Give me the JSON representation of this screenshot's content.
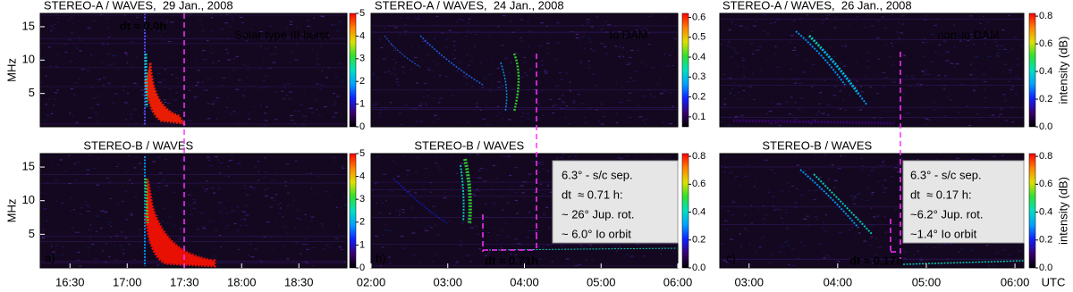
{
  "chart_data": [
    {
      "type": "spectrogram",
      "title": "STEREO-A / WAVES,  29 Jan., 2008",
      "ylabel": "MHz",
      "xlim": [
        16.24,
        18.92
      ],
      "ylim": [
        0,
        17
      ],
      "yticks": [
        5,
        10,
        15
      ],
      "colorbar_lim": [
        0,
        5
      ],
      "colorbar_ticks": [
        0,
        1,
        2,
        3,
        4,
        5
      ],
      "colormap": [
        "#000000",
        "#3a0070",
        "#1020ff",
        "#00a0ff",
        "#00e0c0",
        "#30e030",
        "#e0e000",
        "#ff8000",
        "#ff0000"
      ],
      "annotations": [
        "dt ≈ 0.0h",
        "Solar type III burst"
      ]
    },
    {
      "type": "spectrogram",
      "title": "STEREO-A / WAVES,  24 Jan., 2008",
      "xlim": [
        2,
        6
      ],
      "ylim": [
        0,
        17
      ],
      "colorbar_lim": [
        0.05,
        0.62
      ],
      "colorbar_ticks": [
        0.1,
        0.2,
        0.3,
        0.4,
        0.5,
        0.6
      ],
      "colormap": [
        "#000000",
        "#3a0070",
        "#1020ff",
        "#00a0ff",
        "#00e0c0",
        "#30e030",
        "#e0e000",
        "#ff8000",
        "#ff0000"
      ],
      "annotations": [
        "Io DAM"
      ]
    },
    {
      "type": "spectrogram",
      "title": "STEREO-A / WAVES,  26 Jan., 2008",
      "xlim": [
        2.67,
        6.1
      ],
      "ylim": [
        0,
        17
      ],
      "colorbar_lim": [
        0,
        0.82
      ],
      "colorbar_ticks": [
        {
          "value": 0,
          "label": "0.0"
        },
        0.2,
        0.4,
        0.6,
        0.8
      ],
      "colorbar_label": "intensity (dB)",
      "colormap": [
        "#000000",
        "#3a0070",
        "#1020ff",
        "#00a0ff",
        "#00e0c0",
        "#30e030",
        "#e0e000",
        "#ff8000",
        "#ff0000"
      ],
      "annotations": [
        "non-Io DAM"
      ]
    },
    {
      "type": "spectrogram",
      "title": "STEREO-B / WAVES",
      "ylabel": "MHz",
      "xlim": [
        16.24,
        18.92
      ],
      "ylim": [
        0,
        17
      ],
      "yticks": [
        5,
        10,
        15
      ],
      "xticks": [
        {
          "value": 16.5,
          "label": "16:30"
        },
        {
          "value": 17,
          "label": "17:00"
        },
        {
          "value": 17.5,
          "label": "17:30"
        },
        {
          "value": 18,
          "label": "18:00"
        },
        {
          "value": 18.5,
          "label": "18:30"
        }
      ],
      "colorbar_lim": [
        0,
        5
      ],
      "colorbar_ticks": [
        0,
        1,
        2,
        3,
        4,
        5
      ],
      "colormap": [
        "#000000",
        "#3a0070",
        "#1020ff",
        "#00a0ff",
        "#00e0c0",
        "#30e030",
        "#e0e000",
        "#ff8000",
        "#ff0000"
      ],
      "annotations": [
        "a)"
      ]
    },
    {
      "type": "spectrogram",
      "title": "STEREO-B / WAVES",
      "xlim": [
        2,
        6
      ],
      "ylim": [
        0,
        17
      ],
      "xticks": [
        {
          "value": 2,
          "label": "02:00"
        },
        {
          "value": 3,
          "label": "03:00"
        },
        {
          "value": 4,
          "label": "04:00"
        },
        {
          "value": 5,
          "label": "05:00"
        },
        {
          "value": 6,
          "label": "06:00"
        }
      ],
      "colorbar_lim": [
        0,
        0.82
      ],
      "colorbar_ticks": [
        {
          "value": 0,
          "label": "0.0"
        },
        0.2,
        0.4,
        0.6,
        0.8
      ],
      "colormap": [
        "#000000",
        "#3a0070",
        "#1020ff",
        "#00a0ff",
        "#00e0c0",
        "#30e030",
        "#e0e000",
        "#ff8000",
        "#ff0000"
      ],
      "annotations": [
        "b)",
        "dt ≈ 0.71h",
        "6.3° - s/c sep.",
        "dt  ≈ 0.71 h:",
        "~ 26° Jup. rot.",
        "~ 6.0° Io orbit"
      ]
    },
    {
      "type": "spectrogram",
      "title": "STEREO-B / WAVES",
      "xlabel": "UTC",
      "xlim": [
        2.67,
        6.1
      ],
      "ylim": [
        0,
        17
      ],
      "xticks": [
        {
          "value": 3,
          "label": "03:00"
        },
        {
          "value": 4,
          "label": "04:00"
        },
        {
          "value": 5,
          "label": "05:00"
        },
        {
          "value": 6,
          "label": "06:00"
        }
      ],
      "colorbar_lim": [
        0,
        0.82
      ],
      "colorbar_ticks": [
        {
          "value": 0,
          "label": "0.0"
        },
        0.2,
        0.4,
        0.6,
        0.8
      ],
      "colorbar_label": "intensity (dB)",
      "colormap": [
        "#000000",
        "#3a0070",
        "#1020ff",
        "#00a0ff",
        "#00e0c0",
        "#30e030",
        "#e0e000",
        "#ff8000",
        "#ff0000"
      ],
      "annotations": [
        "c)",
        "dt ≈ 0.17h",
        "6.3° - s/c sep.",
        "dt  ≈ 0.17 h:",
        "~6.2° Jup. rot.",
        "~1.4° Io orbit"
      ]
    }
  ]
}
